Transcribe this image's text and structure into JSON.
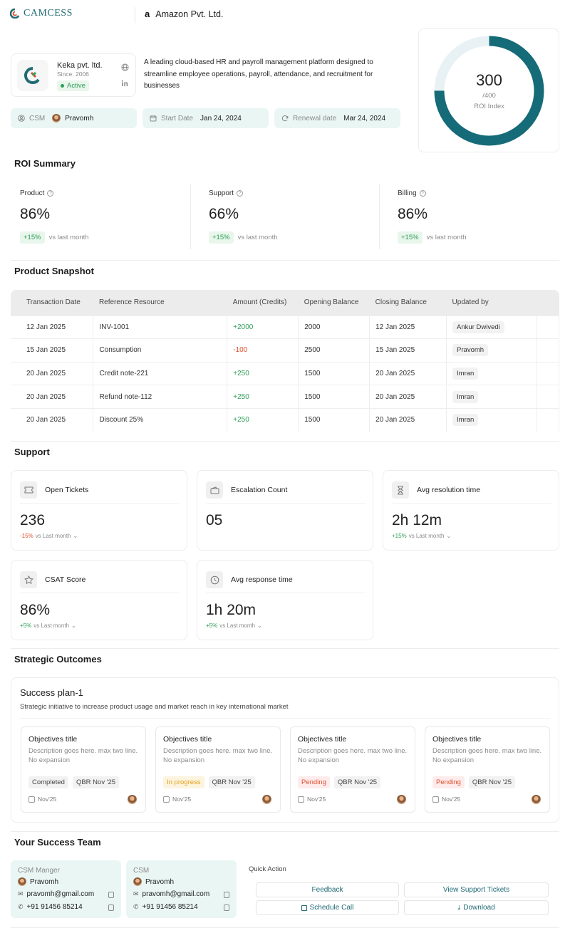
{
  "header": {
    "brand": "CAMCESS",
    "company": "Amazon Pvt. Ltd."
  },
  "client": {
    "name": "Keka pvt. ltd.",
    "since": "Since: 2006",
    "status": "Active",
    "description": "A leading cloud-based HR and payroll management platform designed to streamline employee operations, payroll, attendance, and recruitment for businesses",
    "csm_label": "CSM",
    "csm_name": "Pravomh",
    "start_label": "Start Date",
    "start_value": "Jan 24, 2024",
    "renewal_label": "Renewal date",
    "renewal_value": "Mar 24, 2024"
  },
  "roi_gauge": {
    "value": "300",
    "max_label": "/400",
    "label": "ROI Index",
    "fraction": 0.75,
    "color": "#166b78"
  },
  "roi_summary": {
    "title": "ROI Summary",
    "items": [
      {
        "label": "Product",
        "value": "86%",
        "delta": "+15%",
        "vs": "vs last month"
      },
      {
        "label": "Support",
        "value": "66%",
        "delta": "+15%",
        "vs": "vs last month"
      },
      {
        "label": "Billing",
        "value": "86%",
        "delta": "+15%",
        "vs": "vs last month"
      }
    ]
  },
  "snapshot": {
    "title": "Product Snapshot",
    "columns": [
      "Transaction Date",
      "Reference Resource",
      "Amount (Credits)",
      "Opening Balance",
      "Closing Balance",
      "Updated by"
    ],
    "rows": [
      [
        "12 Jan 2025",
        "INV-1001",
        "+2000",
        "2000",
        "12 Jan 2025",
        "Ankur Dwivedi"
      ],
      [
        "15 Jan 2025",
        "Consumption",
        "-100",
        "2500",
        "15 Jan 2025",
        "Pravomh"
      ],
      [
        "20 Jan 2025",
        "Credit note-221",
        "+250",
        "1500",
        "20 Jan 2025",
        "Imran"
      ],
      [
        "20 Jan 2025",
        "Refund note-112",
        "+250",
        "1500",
        "20 Jan 2025",
        "Imran"
      ],
      [
        "20 Jan 2025",
        "Discount 25%",
        "+250",
        "1500",
        "20 Jan 2025",
        "Imran"
      ]
    ]
  },
  "support": {
    "title": "Support",
    "cards": [
      {
        "label": "Open Tickets",
        "value": "236",
        "delta": "-15%",
        "vs": "vs Last month",
        "icon": "ticket-icon"
      },
      {
        "label": "Escalation Count",
        "value": "05",
        "delta": "",
        "vs": "",
        "icon": "wallet-icon"
      },
      {
        "label": "Avg resolution time",
        "value": "2h 12m",
        "delta": "+15%",
        "vs": "vs Last month",
        "icon": "hourglass-icon"
      },
      {
        "label": "CSAT Score",
        "value": "86%",
        "delta": "+5%",
        "vs": "vs Last month",
        "icon": "star-icon"
      },
      {
        "label": "Avg response time",
        "value": "1h 20m",
        "delta": "+5%",
        "vs": "vs Last month",
        "icon": "clock-icon"
      }
    ]
  },
  "outcomes": {
    "title": "Strategic Outcomes",
    "plan_title": "Success plan-1",
    "plan_desc": "Strategic initiative to increase product usage and market reach in key international market",
    "objectives": [
      {
        "title": "Objectives title",
        "desc": "Description goes here. max two line. No expansion",
        "status": "Completed",
        "qbr": "QBR Nov '25",
        "date": "Nov'25"
      },
      {
        "title": "Objectives title",
        "desc": "Description goes here. max two line. No expansion",
        "status": "In progress",
        "qbr": "QBR Nov '25",
        "date": "Nov'25"
      },
      {
        "title": "Objectives title",
        "desc": "Description goes here. max two line. No expansion",
        "status": "Pending",
        "qbr": "QBR Nov '25",
        "date": "Nov'25"
      },
      {
        "title": "Objectives title",
        "desc": "Description goes here. max two line. No expansion",
        "status": "Pending",
        "qbr": "QBR Nov '25",
        "date": "Nov'25"
      }
    ]
  },
  "team": {
    "title": "Your Success Team",
    "members": [
      {
        "role": "CSM Manger",
        "name": "Pravomh",
        "email": "pravomh@gmail.com",
        "phone": "+91 91456 85214"
      },
      {
        "role": "CSM",
        "name": "Pravomh",
        "email": "pravomh@gmail.com",
        "phone": "+91 91456 85214"
      }
    ],
    "quick_title": "Quick Action",
    "actions": [
      "Feedback",
      "View Support Tickets",
      "Schedule Call",
      "Download"
    ]
  }
}
